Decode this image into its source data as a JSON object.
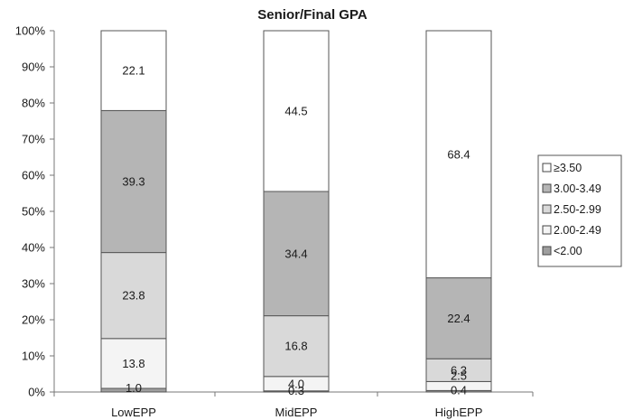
{
  "chart_data": {
    "type": "bar",
    "stacked": true,
    "percent_stacked": true,
    "title": "Senior/Final GPA",
    "xlabel": "",
    "ylabel": "",
    "ylim": [
      0,
      100
    ],
    "y_ticks": [
      "0%",
      "10%",
      "20%",
      "30%",
      "40%",
      "50%",
      "60%",
      "70%",
      "80%",
      "90%",
      "100%"
    ],
    "categories": [
      "LowEPP",
      "MidEPP",
      "HighEPP"
    ],
    "series": [
      {
        "name": "<2.00",
        "values": [
          1.0,
          0.3,
          0.4
        ],
        "labels": [
          "1.0",
          "0.3",
          "0.4"
        ],
        "color": "#9e9e9e"
      },
      {
        "name": "2.00-2.49",
        "values": [
          13.8,
          4.0,
          2.5
        ],
        "labels": [
          "13.8",
          "4.0",
          "2.5"
        ],
        "color": "#f4f4f4"
      },
      {
        "name": "2.50-2.99",
        "values": [
          23.8,
          16.8,
          6.3
        ],
        "labels": [
          "23.8",
          "16.8",
          "6.3"
        ],
        "color": "#d9d9d9"
      },
      {
        "name": "3.00-3.49",
        "values": [
          39.3,
          34.4,
          22.4
        ],
        "labels": [
          "39.3",
          "34.4",
          "22.4"
        ],
        "color": "#b5b5b5"
      },
      {
        "name": "≥3.50",
        "values": [
          22.1,
          44.5,
          68.4
        ],
        "labels": [
          "22.1",
          "44.5",
          "68.4"
        ],
        "color": "#ffffff"
      }
    ],
    "legend": {
      "position": "right",
      "order": [
        "≥3.50",
        "3.00-3.49",
        "2.50-2.99",
        "2.00-2.49",
        "<2.00"
      ]
    },
    "grid": false
  }
}
